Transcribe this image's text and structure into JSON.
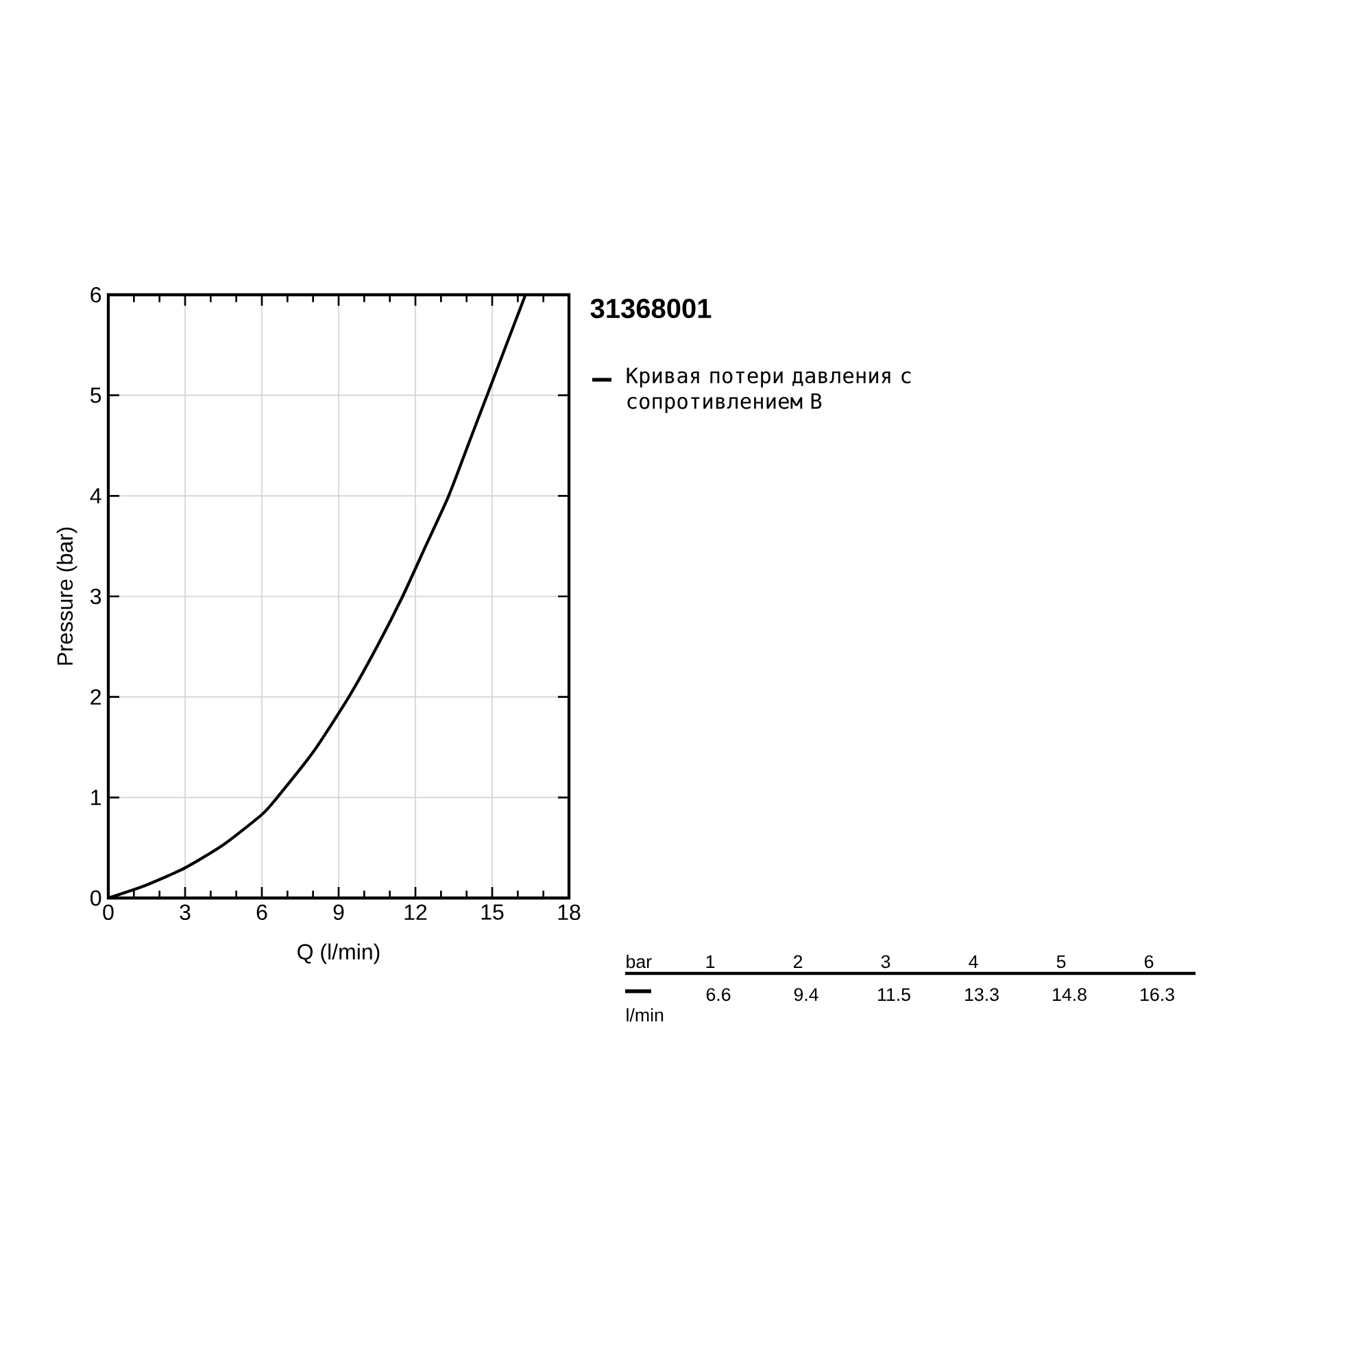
{
  "chart_data": {
    "type": "line",
    "title": "31368001",
    "xlabel": "Q (l/min)",
    "ylabel": "Pressure (bar)",
    "series": [
      {
        "name": "Кривая потери давления с сопротивлением В",
        "color": "#000000",
        "x": [
          0,
          1.5,
          3,
          4.5,
          6,
          6.6,
          8,
          9.4,
          10.5,
          11.5,
          12.4,
          13.3,
          14.05,
          14.8,
          15.55,
          16.3
        ],
        "values": [
          0,
          0.13,
          0.3,
          0.53,
          0.83,
          1,
          1.45,
          2,
          2.5,
          3,
          3.5,
          4,
          4.5,
          5,
          5.5,
          6
        ]
      }
    ],
    "xlim": [
      0,
      18
    ],
    "ylim": [
      0,
      6
    ],
    "xticks": [
      0,
      3,
      6,
      9,
      12,
      15,
      18
    ],
    "yticks": [
      0,
      1,
      2,
      3,
      4,
      5,
      6
    ],
    "grid": true,
    "legend": "right",
    "line_style": "solid",
    "annotations": [
      "bar",
      "1",
      "2",
      "3",
      "4",
      "5",
      "6",
      "l/min",
      "6.6",
      "9.4",
      "11.5",
      "13.3",
      "14.8",
      "16.3"
    ]
  }
}
